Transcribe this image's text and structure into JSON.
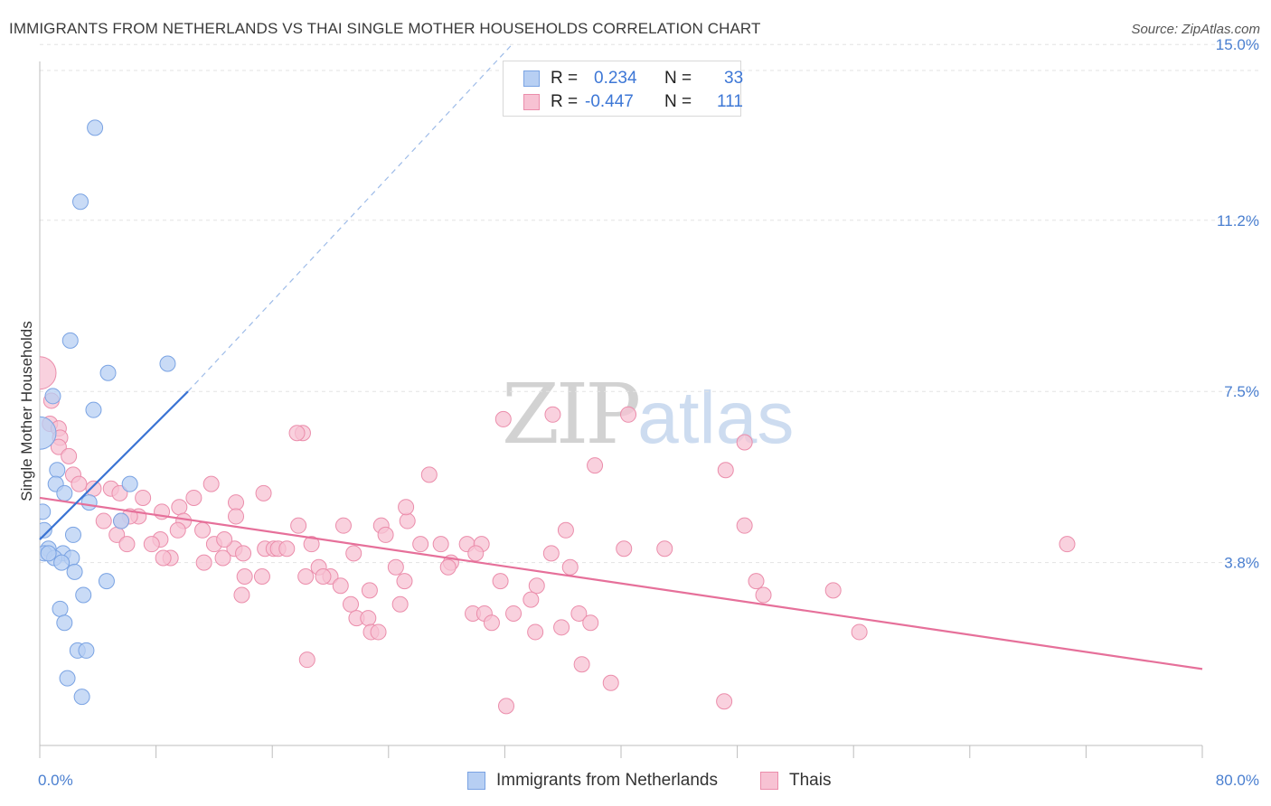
{
  "header": {
    "title": "IMMIGRANTS FROM NETHERLANDS VS THAI SINGLE MOTHER HOUSEHOLDS CORRELATION CHART",
    "source": "Source: ZipAtlas.com"
  },
  "watermark": {
    "zip": "ZIP",
    "atlas": "atlas"
  },
  "legend_top": {
    "rows": [
      {
        "r_label": "R =",
        "r_value": "0.234",
        "n_label": "N =",
        "n_value": "33"
      },
      {
        "r_label": "R =",
        "r_value": "-0.447",
        "n_label": "N =",
        "n_value": "111"
      }
    ]
  },
  "legend_bottom": {
    "items": [
      "Immigrants from Netherlands",
      "Thais"
    ]
  },
  "colors": {
    "blue_fill": "#b7cff3",
    "blue_stroke": "#7aa3e3",
    "blue_line": "#3b74d4",
    "pink_fill": "#f7c2d3",
    "pink_stroke": "#eb8dab",
    "pink_line": "#e6709a",
    "grid": "#e3e3e3",
    "tick_text": "#4a7fd0"
  },
  "chart_data": {
    "type": "scatter",
    "title": "IMMIGRANTS FROM NETHERLANDS VS THAI SINGLE MOTHER HOUSEHOLDS CORRELATION CHART",
    "xlabel": "",
    "ylabel": "Single Mother Households",
    "xlim": [
      0,
      80
    ],
    "ylim": [
      0,
      16
    ],
    "x_tick_labels": [
      "0.0%",
      "80.0%"
    ],
    "y_ticks": [
      3.8,
      7.5,
      11.2,
      15.0
    ],
    "y_tick_labels": [
      "3.8%",
      "7.5%",
      "11.2%",
      "15.0%"
    ],
    "grid": true,
    "series": [
      {
        "name": "Immigrants from Netherlands",
        "color": "#b7cff3",
        "r": 0.234,
        "n": 33,
        "trend": {
          "x": [
            0.0,
            10.2
          ],
          "y": [
            4.3,
            7.5
          ],
          "dashed_to": [
            32.5,
            15.0
          ]
        },
        "points": [
          [
            3.8,
            13.2
          ],
          [
            2.8,
            11.6
          ],
          [
            2.1,
            8.6
          ],
          [
            8.8,
            8.1
          ],
          [
            4.7,
            7.9
          ],
          [
            0.9,
            7.4
          ],
          [
            3.7,
            7.1
          ],
          [
            0.0,
            6.6
          ],
          [
            1.2,
            5.8
          ],
          [
            6.2,
            5.5
          ],
          [
            1.1,
            5.5
          ],
          [
            1.7,
            5.3
          ],
          [
            3.4,
            5.1
          ],
          [
            0.2,
            4.9
          ],
          [
            5.6,
            4.7
          ],
          [
            0.3,
            4.5
          ],
          [
            2.3,
            4.4
          ],
          [
            0.6,
            4.1
          ],
          [
            1.6,
            4.0
          ],
          [
            0.3,
            4.0
          ],
          [
            1.0,
            3.9
          ],
          [
            2.2,
            3.9
          ],
          [
            1.5,
            3.8
          ],
          [
            2.4,
            3.6
          ],
          [
            4.6,
            3.4
          ],
          [
            3.0,
            3.1
          ],
          [
            1.4,
            2.8
          ],
          [
            1.7,
            2.5
          ],
          [
            2.6,
            1.9
          ],
          [
            3.2,
            1.9
          ],
          [
            1.9,
            1.3
          ],
          [
            2.9,
            0.9
          ],
          [
            0.6,
            4.0
          ]
        ]
      },
      {
        "name": "Thais",
        "color": "#f7c2d3",
        "r": -0.447,
        "n": 111,
        "trend": {
          "x": [
            0.0,
            80.0
          ],
          "y": [
            5.2,
            1.5
          ]
        },
        "points": [
          [
            0.0,
            7.9
          ],
          [
            0.8,
            7.3
          ],
          [
            0.7,
            6.8
          ],
          [
            1.3,
            6.7
          ],
          [
            1.4,
            6.5
          ],
          [
            1.3,
            6.3
          ],
          [
            2.0,
            6.1
          ],
          [
            2.3,
            5.7
          ],
          [
            2.7,
            5.5
          ],
          [
            4.9,
            5.4
          ],
          [
            5.5,
            5.3
          ],
          [
            3.7,
            5.4
          ],
          [
            10.6,
            5.2
          ],
          [
            11.8,
            5.5
          ],
          [
            13.5,
            5.1
          ],
          [
            9.6,
            5.0
          ],
          [
            7.1,
            5.2
          ],
          [
            6.8,
            4.8
          ],
          [
            6.2,
            4.8
          ],
          [
            8.4,
            4.9
          ],
          [
            9.9,
            4.7
          ],
          [
            5.6,
            4.7
          ],
          [
            4.4,
            4.7
          ],
          [
            13.5,
            4.8
          ],
          [
            15.4,
            5.3
          ],
          [
            17.8,
            4.6
          ],
          [
            20.9,
            4.6
          ],
          [
            23.5,
            4.6
          ],
          [
            25.3,
            4.7
          ],
          [
            25.2,
            5.0
          ],
          [
            26.8,
            5.7
          ],
          [
            31.9,
            6.9
          ],
          [
            35.3,
            7.0
          ],
          [
            40.5,
            7.0
          ],
          [
            48.5,
            6.4
          ],
          [
            38.2,
            5.9
          ],
          [
            47.2,
            5.8
          ],
          [
            18.1,
            6.6
          ],
          [
            17.7,
            6.6
          ],
          [
            9.5,
            4.5
          ],
          [
            11.2,
            4.5
          ],
          [
            8.3,
            4.3
          ],
          [
            5.3,
            4.4
          ],
          [
            6.0,
            4.2
          ],
          [
            7.7,
            4.2
          ],
          [
            12.0,
            4.2
          ],
          [
            13.4,
            4.1
          ],
          [
            15.5,
            4.1
          ],
          [
            14.0,
            4.0
          ],
          [
            16.1,
            4.1
          ],
          [
            12.6,
            3.9
          ],
          [
            11.3,
            3.8
          ],
          [
            9.0,
            3.9
          ],
          [
            8.5,
            3.9
          ],
          [
            18.7,
            4.2
          ],
          [
            16.4,
            4.1
          ],
          [
            17.0,
            4.1
          ],
          [
            19.2,
            3.7
          ],
          [
            21.6,
            4.0
          ],
          [
            23.8,
            4.4
          ],
          [
            26.2,
            4.2
          ],
          [
            27.6,
            4.2
          ],
          [
            28.3,
            3.8
          ],
          [
            28.1,
            3.7
          ],
          [
            29.4,
            4.2
          ],
          [
            30.4,
            4.2
          ],
          [
            30.0,
            4.0
          ],
          [
            35.2,
            4.0
          ],
          [
            40.2,
            4.1
          ],
          [
            43.0,
            4.1
          ],
          [
            48.5,
            4.6
          ],
          [
            36.2,
            4.5
          ],
          [
            24.5,
            3.7
          ],
          [
            25.1,
            3.4
          ],
          [
            15.3,
            3.5
          ],
          [
            14.1,
            3.5
          ],
          [
            18.3,
            3.5
          ],
          [
            20.0,
            3.5
          ],
          [
            19.5,
            3.5
          ],
          [
            20.7,
            3.3
          ],
          [
            22.7,
            3.2
          ],
          [
            31.7,
            3.4
          ],
          [
            34.2,
            3.3
          ],
          [
            36.5,
            3.7
          ],
          [
            49.3,
            3.4
          ],
          [
            49.8,
            3.1
          ],
          [
            54.6,
            3.2
          ],
          [
            13.9,
            3.1
          ],
          [
            21.4,
            2.9
          ],
          [
            24.8,
            2.9
          ],
          [
            21.8,
            2.6
          ],
          [
            22.6,
            2.6
          ],
          [
            29.8,
            2.7
          ],
          [
            30.6,
            2.7
          ],
          [
            31.1,
            2.5
          ],
          [
            33.8,
            3.0
          ],
          [
            32.6,
            2.7
          ],
          [
            37.1,
            2.7
          ],
          [
            37.9,
            2.5
          ],
          [
            35.9,
            2.4
          ],
          [
            34.1,
            2.3
          ],
          [
            22.8,
            2.3
          ],
          [
            23.3,
            2.3
          ],
          [
            56.4,
            2.3
          ],
          [
            18.4,
            1.7
          ],
          [
            37.3,
            1.6
          ],
          [
            39.3,
            1.2
          ],
          [
            32.1,
            0.7
          ],
          [
            47.1,
            0.8
          ],
          [
            70.7,
            4.2
          ],
          [
            12.7,
            4.3
          ]
        ]
      }
    ]
  }
}
